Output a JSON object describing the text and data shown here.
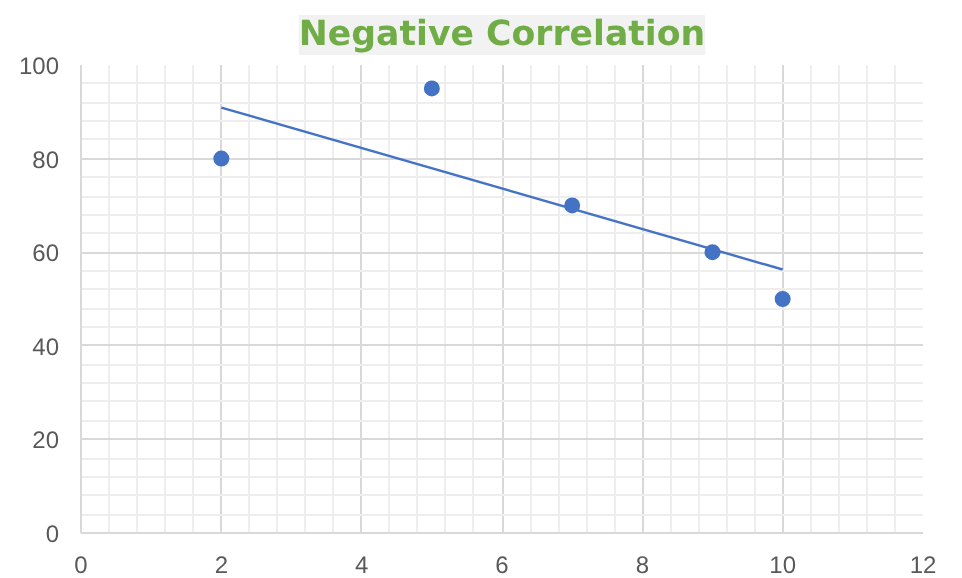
{
  "chart_data": {
    "type": "scatter",
    "title": "Negative Correlation",
    "xlim": [
      0,
      12
    ],
    "xticks": [
      0,
      2,
      4,
      6,
      8,
      10,
      12
    ],
    "ylim": [
      0,
      100
    ],
    "yticks": [
      0,
      20,
      40,
      60,
      80,
      100
    ],
    "grid": true,
    "marker": "circle",
    "series": [
      {
        "color": "#4472c4",
        "x": [
          2,
          5,
          7,
          9,
          10
        ],
        "values": [
          80,
          95,
          70,
          60,
          50
        ]
      },
      {
        "type": "line",
        "color": "#4472c4",
        "x": [
          2,
          10
        ],
        "values": [
          90.9,
          56.3
        ],
        "marker": "none",
        "line_style": "solid"
      }
    ]
  }
}
